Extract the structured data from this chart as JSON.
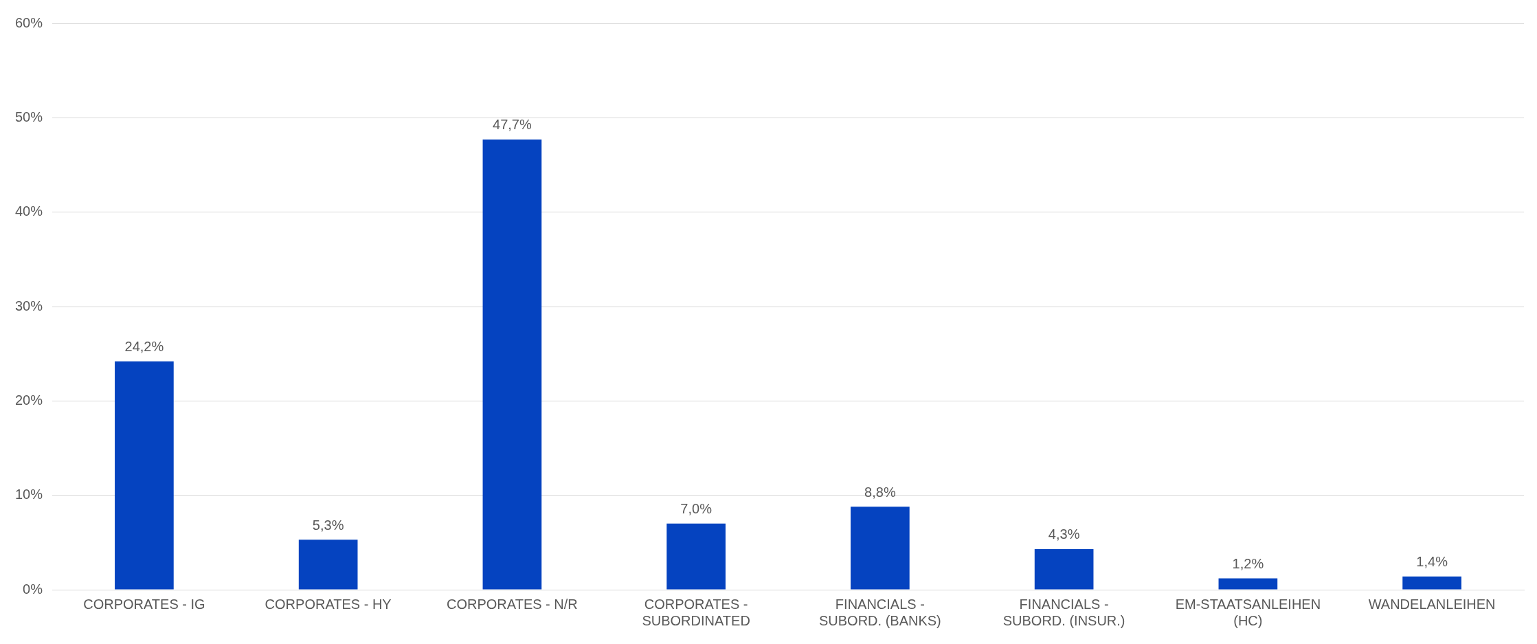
{
  "chart_data": {
    "type": "bar",
    "categories": [
      "CORPORATES - IG",
      "CORPORATES - HY",
      "CORPORATES - N/R",
      "CORPORATES - SUBORDINATED",
      "FINANCIALS - SUBORD. (BANKS)",
      "FINANCIALS - SUBORD. (INSUR.)",
      "EM-STAATSANLEIHEN (HC)",
      "WANDELANLEIHEN"
    ],
    "values": [
      24.2,
      5.3,
      47.7,
      7.0,
      8.8,
      4.3,
      1.2,
      1.4
    ],
    "value_labels": [
      "24,2%",
      "5,3%",
      "47,7%",
      "7,0%",
      "8,8%",
      "4,3%",
      "1,2%",
      "1,4%"
    ],
    "color": "#0543c0",
    "ylim": [
      0,
      60
    ],
    "yticks": [
      {
        "value": 0,
        "label": "0%"
      },
      {
        "value": 10,
        "label": "10%"
      },
      {
        "value": 20,
        "label": "20%"
      },
      {
        "value": 30,
        "label": "30%"
      },
      {
        "value": 40,
        "label": "40%"
      },
      {
        "value": 50,
        "label": "50%"
      },
      {
        "value": 60,
        "label": "60%"
      }
    ],
    "grid": "y",
    "legend": false
  }
}
